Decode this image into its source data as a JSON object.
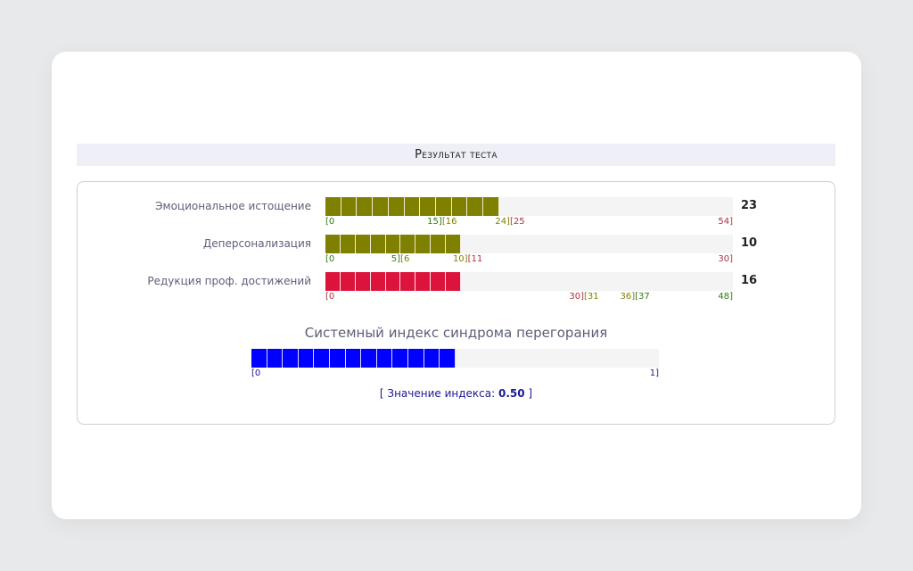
{
  "header": {
    "title": "Результат теста"
  },
  "scales": [
    {
      "label": "Эмоциональное истощение",
      "value": "23",
      "score": 23,
      "max": 54,
      "color": "#808000",
      "segments": 11,
      "ticks": [
        {
          "text": "[0",
          "at": 0,
          "color": "#2e7d12"
        },
        {
          "text": "15][16",
          "at": 15.5,
          "color": "#2e7d12",
          "color2": "#808000"
        },
        {
          "text": "24][25",
          "at": 24.5,
          "color": "#808000",
          "color2": "#b03040"
        },
        {
          "text": "54]",
          "at": 54,
          "color": "#b03040"
        }
      ]
    },
    {
      "label": "Деперсонализация",
      "value": "10",
      "score": 10,
      "max": 30,
      "color": "#808000",
      "segments": 9,
      "ticks": [
        {
          "text": "[0",
          "at": 0,
          "color": "#2e7d12"
        },
        {
          "text": "5][6",
          "at": 5.5,
          "color": "#2e7d12",
          "color2": "#808000"
        },
        {
          "text": "10][11",
          "at": 10.5,
          "color": "#808000",
          "color2": "#b03040"
        },
        {
          "text": "30]",
          "at": 30,
          "color": "#b03040"
        }
      ]
    },
    {
      "label": "Редукция проф. достижений",
      "value": "16",
      "score": 16,
      "max": 48,
      "color": "#dc143c",
      "segments": 9,
      "ticks": [
        {
          "text": "[0",
          "at": 0,
          "color": "#b03040"
        },
        {
          "text": "30][31",
          "at": 30.5,
          "color": "#b03040",
          "color2": "#808000"
        },
        {
          "text": "36][37",
          "at": 36.5,
          "color": "#808000",
          "color2": "#2e7d12"
        },
        {
          "text": "48]",
          "at": 48,
          "color": "#2e7d12"
        }
      ]
    }
  ],
  "index": {
    "title": "Системный индекс синдрома перегорания",
    "score": 0.5,
    "max": 1,
    "color": "#0000ff",
    "segments": 13,
    "tick_min": "[0",
    "tick_max": "1]",
    "value_prefix": "[ Значение индекса: ",
    "value": "0.50",
    "value_suffix": " ]"
  }
}
